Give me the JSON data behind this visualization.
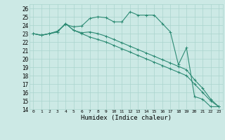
{
  "title": "",
  "xlabel": "Humidex (Indice chaleur)",
  "xlim": [
    -0.5,
    23.5
  ],
  "ylim": [
    14,
    26.5
  ],
  "yticks": [
    14,
    15,
    16,
    17,
    18,
    19,
    20,
    21,
    22,
    23,
    24,
    25,
    26
  ],
  "xticks": [
    0,
    1,
    2,
    3,
    4,
    5,
    6,
    7,
    8,
    9,
    10,
    11,
    12,
    13,
    14,
    15,
    16,
    17,
    18,
    19,
    20,
    21,
    22,
    23
  ],
  "color": "#2d8b74",
  "bg_color": "#cce9e5",
  "grid_color": "#aad4ce",
  "line1_y": [
    23,
    22.8,
    23,
    23.3,
    24.1,
    23.8,
    23.9,
    24.8,
    25.0,
    24.9,
    24.4,
    24.4,
    25.6,
    25.2,
    25.2,
    25.2,
    24.2,
    23.2,
    19.3,
    21.3,
    15.5,
    15.2,
    14.3,
    14.3
  ],
  "line2_y": [
    23,
    22.8,
    23,
    23.2,
    24.2,
    23.4,
    23.1,
    23.2,
    23.0,
    22.7,
    22.3,
    21.9,
    21.5,
    21.1,
    20.7,
    20.3,
    19.9,
    19.5,
    19.1,
    18.7,
    17.5,
    16.5,
    15.2,
    14.3
  ],
  "line3_y": [
    23,
    22.8,
    23,
    23.2,
    24.2,
    23.4,
    23.0,
    22.6,
    22.3,
    22.0,
    21.6,
    21.2,
    20.8,
    20.4,
    20.0,
    19.6,
    19.2,
    18.8,
    18.4,
    18.0,
    17.0,
    16.0,
    15.0,
    14.3
  ]
}
